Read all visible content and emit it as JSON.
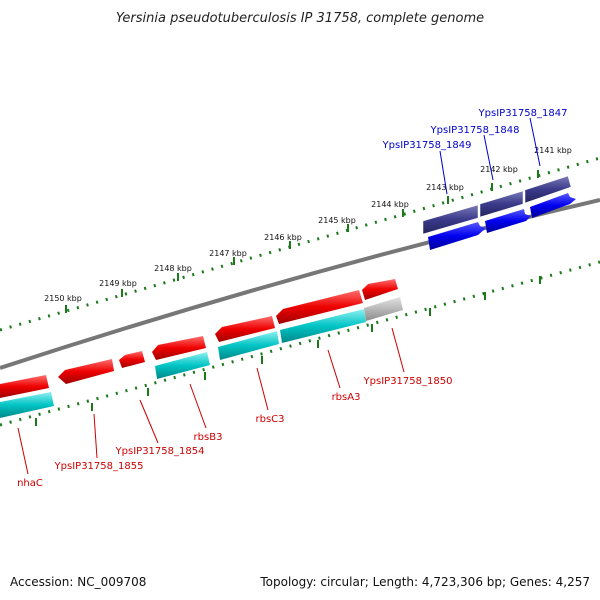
{
  "title": "Yersinia pseudotuberculosis IP 31758, complete genome",
  "accession": "Accession: NC_009708",
  "summary": "Topology: circular; Length: 4,723,306 bp; Genes: 4,257",
  "kbp_labels": [
    "2141 kbp",
    "2142 kbp",
    "2143 kbp",
    "2144 kbp",
    "2145 kbp",
    "2146 kbp",
    "2147 kbp",
    "2148 kbp",
    "2149 kbp",
    "2150 kbp"
  ],
  "gene_labels_top": [
    "YpsIP31758_1847",
    "YpsIP31758_1848",
    "YpsIP31758_1849"
  ],
  "gene_labels_bottom": [
    "nhaC",
    "YpsIP31758_1855",
    "YpsIP31758_1854",
    "rbsB3",
    "rbsC3",
    "rbsA3",
    "YpsIP31758_1850"
  ],
  "colors": {
    "forward_cds": "#0000ee",
    "forward_cds_dark": "#3a3a8a",
    "reverse_cds": "#ee0000",
    "reverse_cds_teal": "#00c4c4",
    "grey_feature": "#b8b8b8",
    "backbone": "#777777",
    "tick": "#1a7a1a",
    "label_red": "#cc0000",
    "label_blue": "#0000cc"
  }
}
